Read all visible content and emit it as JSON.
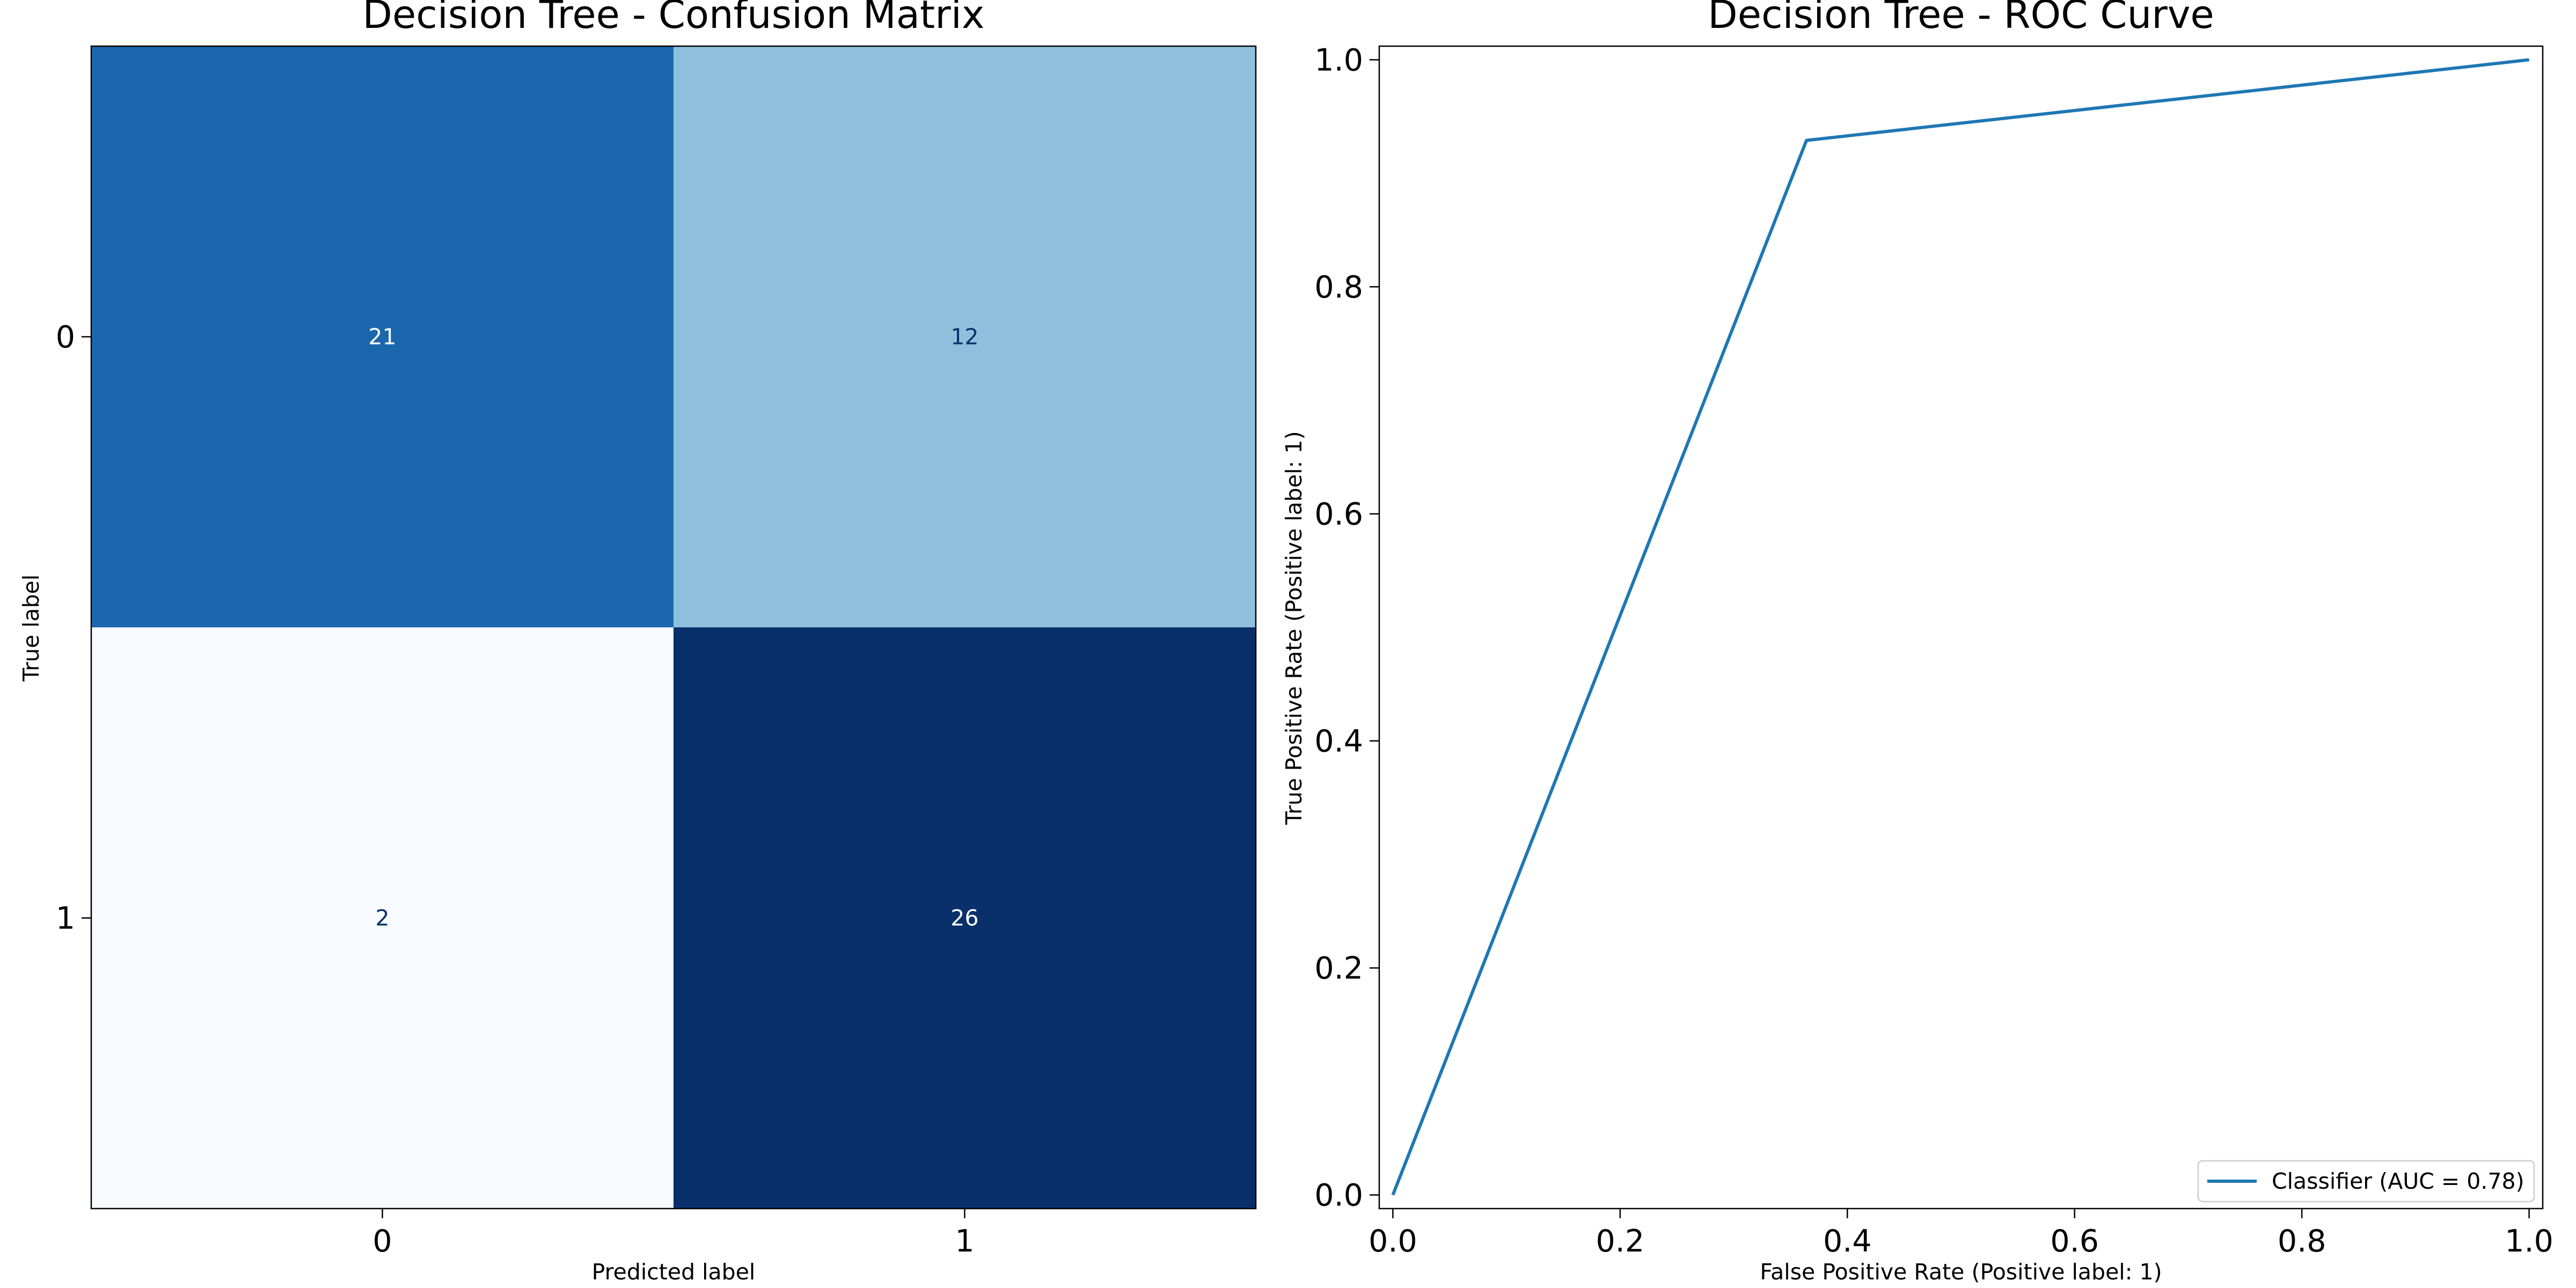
{
  "chart_data": [
    {
      "type": "heatmap",
      "title": "Decision Tree - Confusion Matrix",
      "xlabel": "Predicted label",
      "ylabel": "True label",
      "x_categories": [
        "0",
        "1"
      ],
      "y_categories": [
        "0",
        "1"
      ],
      "values": [
        [
          21,
          12
        ],
        [
          2,
          26
        ]
      ],
      "colormap": "Blues",
      "cell_colors": [
        [
          "#1a67ad",
          "#8ec0dd"
        ],
        [
          "#f7fbff",
          "#08306b"
        ]
      ],
      "label_colors": [
        [
          "#ffffff",
          "#08306b"
        ],
        [
          "#08306b",
          "#ffffff"
        ]
      ]
    },
    {
      "type": "line",
      "title": "Decision Tree - ROC Curve",
      "xlabel": "False Positive Rate (Positive label: 1)",
      "ylabel": "True Positive Rate (Positive label: 1)",
      "xlim": [
        -0.012,
        1.012
      ],
      "ylim": [
        -0.012,
        1.012
      ],
      "xticks": [
        "0.0",
        "0.2",
        "0.4",
        "0.6",
        "0.8",
        "1.0"
      ],
      "yticks": [
        "0.0",
        "0.2",
        "0.4",
        "0.6",
        "0.8",
        "1.0"
      ],
      "grid": false,
      "legend_position": "lower-right",
      "series": [
        {
          "name": "Classifier (AUC = 0.78)",
          "color": "#1f77b4",
          "x": [
            0.0,
            0.364,
            1.0
          ],
          "y": [
            0.0,
            0.929,
            1.0
          ]
        }
      ]
    }
  ]
}
